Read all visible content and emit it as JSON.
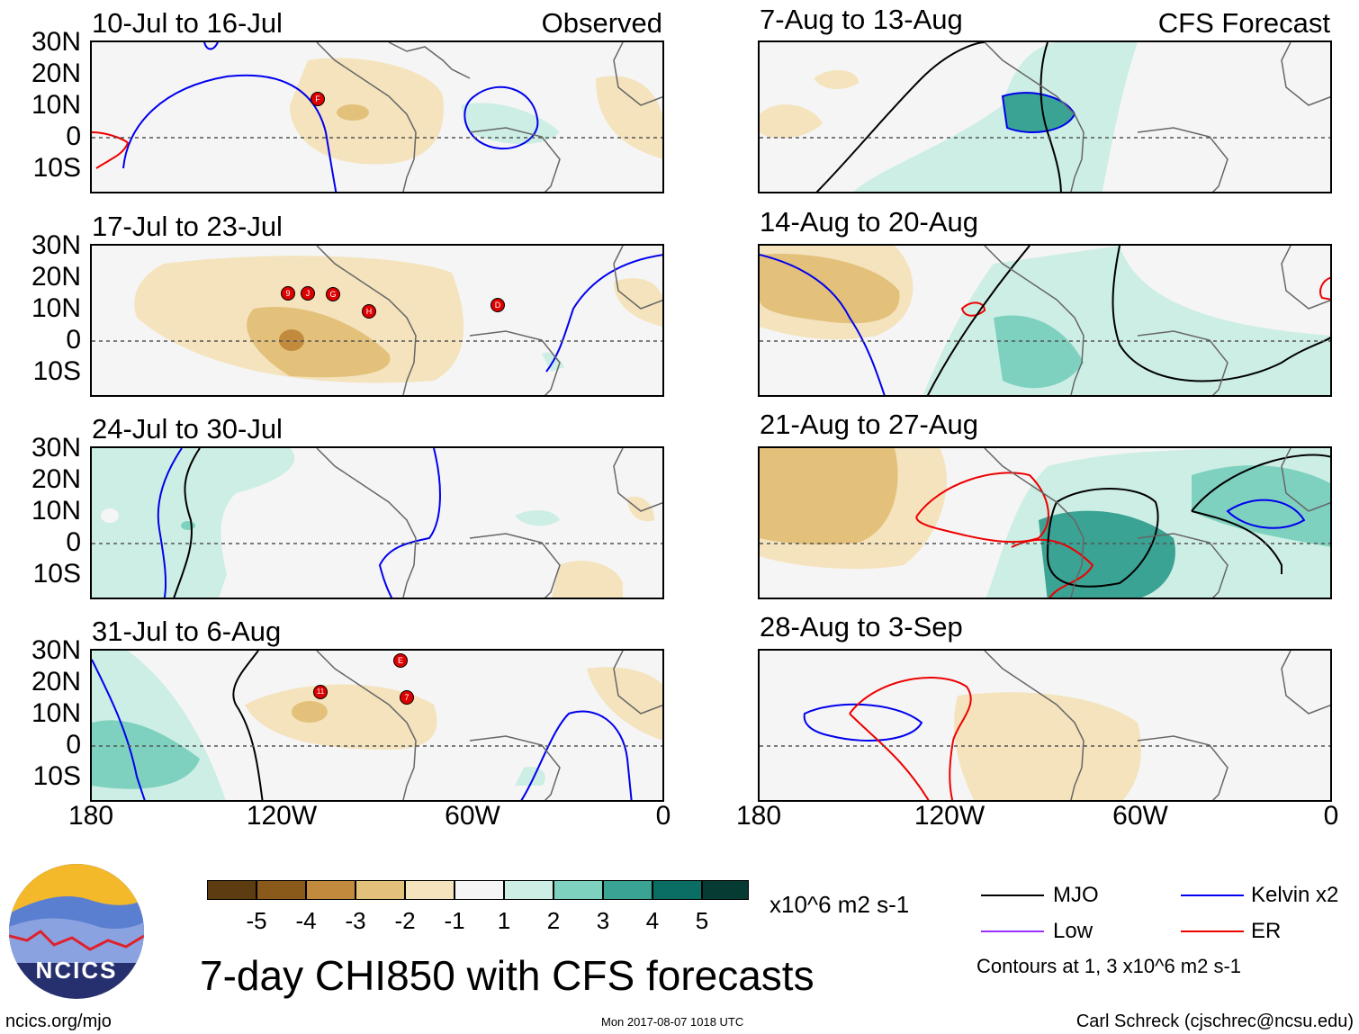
{
  "colors": {
    "brown5": "#5e3c11",
    "brown4": "#8a5a1a",
    "brown3": "#c18a3c",
    "brown2": "#e3c17b",
    "brown1": "#f4e3bd",
    "neutral": "#f5f5f5",
    "teal1": "#cdeee4",
    "teal2": "#7fd1bf",
    "teal3": "#3aa394",
    "teal4": "#0a6e64",
    "teal5": "#063b33",
    "mjo": "#000000",
    "low": "#9b30ff",
    "kelvin": "#0000ee",
    "er": "#ee0000",
    "land": "#666666",
    "equator": "#555555"
  },
  "lat_labels": [
    "30N",
    "20N",
    "10N",
    "0",
    "10S"
  ],
  "lon_labels": [
    "180",
    "120W",
    "60W",
    "0"
  ],
  "panels": [
    {
      "title": "10-Jul to 16-Jul",
      "tag": "Observed",
      "storms": [
        "F"
      ]
    },
    {
      "title": "17-Jul to 23-Jul",
      "tag": "",
      "storms": [
        "9",
        "J",
        "G",
        "H",
        "D"
      ]
    },
    {
      "title": "24-Jul to 30-Jul",
      "tag": "",
      "storms": []
    },
    {
      "title": "31-Jul to 6-Aug",
      "tag": "",
      "storms": [
        "E",
        "11",
        "7"
      ]
    },
    {
      "title": "7-Aug to 13-Aug",
      "tag": "CFS Forecast",
      "storms": []
    },
    {
      "title": "14-Aug to 20-Aug",
      "tag": "",
      "storms": []
    },
    {
      "title": "21-Aug to 27-Aug",
      "tag": "",
      "storms": []
    },
    {
      "title": "28-Aug to 3-Sep",
      "tag": "",
      "storms": []
    }
  ],
  "colorbar": {
    "labels": [
      "-5",
      "-4",
      "-3",
      "-2",
      "-1",
      "1",
      "2",
      "3",
      "4",
      "5"
    ],
    "units": "x10^6 m2 s-1"
  },
  "legend": {
    "mjo": "MJO",
    "kelvin": "Kelvin x2",
    "low": "Low",
    "er": "ER",
    "contours_note": "Contours at 1, 3 x10^6 m2 s-1"
  },
  "logo_text": "NCICS",
  "main_title": "7-day CHI850 with CFS forecasts",
  "footer": {
    "url": "ncics.org/mjo",
    "timestamp": "Mon 2017-08-07 1018 UTC",
    "credit": "Carl Schreck (cjschrec@ncsu.edu)"
  }
}
